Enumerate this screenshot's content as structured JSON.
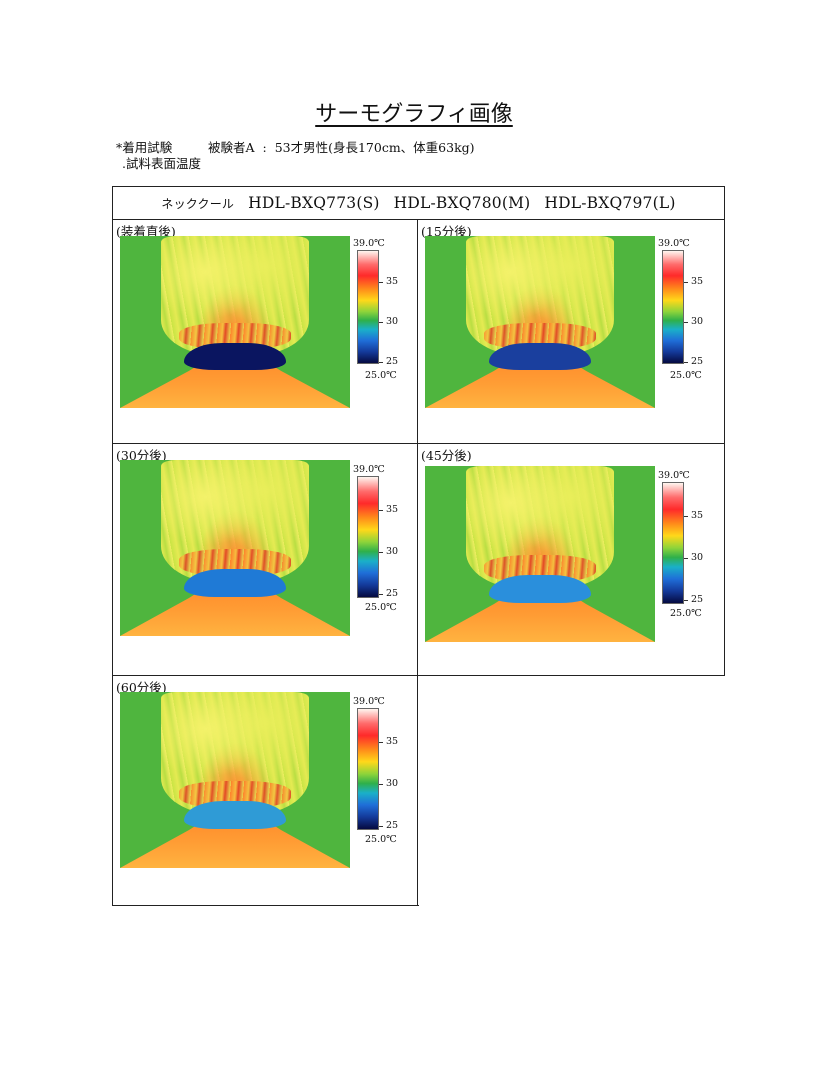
{
  "title": "サーモグラフィ画像",
  "meta": {
    "line1_prefix": "*着用試験",
    "line1_subject": "被験者A",
    "line1_colon": ":",
    "line1_detail": "53才男性(身長170cm、体重63kg)",
    "line2": ".試料表面温度"
  },
  "header": {
    "product_kana": "ネッククール",
    "model_s": "HDL-BXQ773(S)",
    "model_m": "HDL-BXQ780(M)",
    "model_l": "HDL-BXQ797(L)"
  },
  "panels": [
    {
      "label": "(装着直後)",
      "collar_color": "#0a1560"
    },
    {
      "label": "(15分後)",
      "collar_color": "#1a3f9e"
    },
    {
      "label": "(30分後)",
      "collar_color": "#1f7ad6"
    },
    {
      "label": "(45分後)",
      "collar_color": "#2a8fdc"
    },
    {
      "label": "(60分後)",
      "collar_color": "#2f9bd6"
    }
  ],
  "scale": {
    "max": "39.0℃",
    "t35": "35",
    "t30": "30",
    "t25": "25",
    "min": "25.0℃"
  }
}
